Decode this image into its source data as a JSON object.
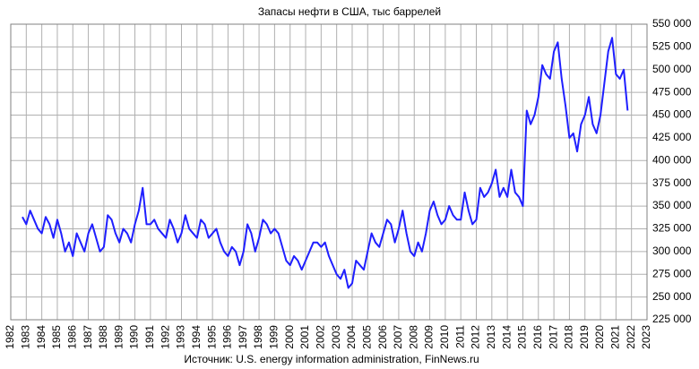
{
  "chart_data": {
    "type": "line",
    "title": "Запасы нефти в США, тыс баррелей",
    "source": "Источник: U.S. energy information administration, FinNews.ru",
    "x": [
      1982.75,
      1983,
      1983.25,
      1983.5,
      1983.75,
      1984,
      1984.25,
      1984.5,
      1984.75,
      1985,
      1985.25,
      1985.5,
      1985.75,
      1986,
      1986.25,
      1986.5,
      1986.75,
      1987,
      1987.25,
      1987.5,
      1987.75,
      1988,
      1988.25,
      1988.5,
      1988.75,
      1989,
      1989.25,
      1989.5,
      1989.75,
      1990,
      1990.25,
      1990.5,
      1990.75,
      1991,
      1991.25,
      1991.5,
      1991.75,
      1992,
      1992.25,
      1992.5,
      1992.75,
      1993,
      1993.25,
      1993.5,
      1993.75,
      1994,
      1994.25,
      1994.5,
      1994.75,
      1995,
      1995.25,
      1995.5,
      1995.75,
      1996,
      1996.25,
      1996.5,
      1996.75,
      1997,
      1997.25,
      1997.5,
      1997.75,
      1998,
      1998.25,
      1998.5,
      1998.75,
      1999,
      1999.25,
      1999.5,
      1999.75,
      2000,
      2000.25,
      2000.5,
      2000.75,
      2001,
      2001.25,
      2001.5,
      2001.75,
      2002,
      2002.25,
      2002.5,
      2002.75,
      2003,
      2003.25,
      2003.5,
      2003.75,
      2004,
      2004.25,
      2004.5,
      2004.75,
      2005,
      2005.25,
      2005.5,
      2005.75,
      2006,
      2006.25,
      2006.5,
      2006.75,
      2007,
      2007.25,
      2007.5,
      2007.75,
      2008,
      2008.25,
      2008.5,
      2008.75,
      2009,
      2009.25,
      2009.5,
      2009.75,
      2010,
      2010.25,
      2010.5,
      2010.75,
      2011,
      2011.25,
      2011.5,
      2011.75,
      2012,
      2012.25,
      2012.5,
      2012.75,
      2013,
      2013.25,
      2013.5,
      2013.75,
      2014,
      2014.25,
      2014.5,
      2014.75,
      2015,
      2015.25,
      2015.5,
      2015.75,
      2016,
      2016.25,
      2016.5,
      2016.75,
      2017,
      2017.25,
      2017.5,
      2017.75,
      2018,
      2018.25,
      2018.5,
      2018.75,
      2019,
      2019.25,
      2019.5,
      2019.75,
      2020,
      2020.25,
      2020.5,
      2020.75,
      2021,
      2021.25,
      2021.5,
      2021.75
    ],
    "series": [
      {
        "color": "#1f1fff",
        "values": [
          338000,
          330000,
          345000,
          335000,
          325000,
          320000,
          338000,
          330000,
          315000,
          335000,
          320000,
          300000,
          310000,
          295000,
          320000,
          310000,
          300000,
          320000,
          330000,
          315000,
          300000,
          305000,
          340000,
          335000,
          320000,
          310000,
          325000,
          320000,
          310000,
          330000,
          345000,
          370000,
          330000,
          330000,
          335000,
          325000,
          320000,
          315000,
          335000,
          325000,
          310000,
          320000,
          340000,
          325000,
          320000,
          315000,
          335000,
          330000,
          315000,
          320000,
          325000,
          310000,
          300000,
          295000,
          305000,
          300000,
          285000,
          300000,
          330000,
          320000,
          300000,
          315000,
          335000,
          330000,
          320000,
          325000,
          320000,
          305000,
          290000,
          285000,
          295000,
          290000,
          280000,
          290000,
          300000,
          310000,
          310000,
          305000,
          310000,
          295000,
          285000,
          275000,
          270000,
          280000,
          260000,
          265000,
          290000,
          285000,
          280000,
          300000,
          320000,
          310000,
          305000,
          320000,
          335000,
          330000,
          310000,
          325000,
          345000,
          320000,
          300000,
          295000,
          310000,
          300000,
          320000,
          345000,
          355000,
          340000,
          330000,
          335000,
          350000,
          340000,
          335000,
          335000,
          365000,
          345000,
          330000,
          335000,
          370000,
          360000,
          365000,
          375000,
          390000,
          360000,
          370000,
          360000,
          390000,
          365000,
          360000,
          350000,
          455000,
          440000,
          450000,
          470000,
          505000,
          495000,
          490000,
          520000,
          530000,
          490000,
          460000,
          425000,
          430000,
          410000,
          440000,
          450000,
          470000,
          440000,
          430000,
          450000,
          485000,
          520000,
          535000,
          495000,
          490000,
          500000,
          455000
        ]
      }
    ],
    "xlim": [
      1982,
      2023
    ],
    "xticks": [
      1982,
      1983,
      1984,
      1985,
      1986,
      1987,
      1988,
      1989,
      1990,
      1991,
      1992,
      1993,
      1994,
      1995,
      1996,
      1997,
      1998,
      1999,
      2000,
      2001,
      2002,
      2003,
      2004,
      2005,
      2006,
      2007,
      2008,
      2009,
      2010,
      2011,
      2012,
      2013,
      2014,
      2015,
      2016,
      2017,
      2018,
      2019,
      2020,
      2021,
      2022,
      2023
    ],
    "ylim": [
      225000,
      550000
    ],
    "yticks": [
      {
        "value": 225000,
        "label": "225 000"
      },
      {
        "value": 250000,
        "label": "250 000"
      },
      {
        "value": 275000,
        "label": "275 000"
      },
      {
        "value": 300000,
        "label": "300 000"
      },
      {
        "value": 325000,
        "label": "325 000"
      },
      {
        "value": 350000,
        "label": "350 000"
      },
      {
        "value": 375000,
        "label": "375 000"
      },
      {
        "value": 400000,
        "label": "400 000"
      },
      {
        "value": 425000,
        "label": "425 000"
      },
      {
        "value": 450000,
        "label": "450 000"
      },
      {
        "value": 475000,
        "label": "475 000"
      },
      {
        "value": 500000,
        "label": "500 000"
      },
      {
        "value": 525000,
        "label": "525 000"
      },
      {
        "value": 550000,
        "label": "550 000"
      }
    ],
    "grid": true
  }
}
